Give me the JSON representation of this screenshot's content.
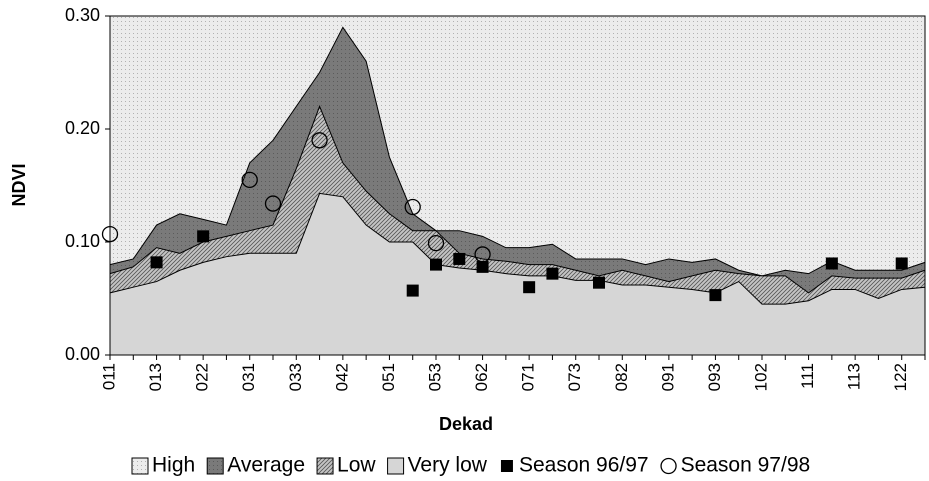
{
  "chart_data": {
    "type": "area",
    "x_label": "Dekad",
    "y_label": "NDVI",
    "categories": [
      "011",
      null,
      "013",
      null,
      "022",
      null,
      "031",
      null,
      "033",
      null,
      "042",
      null,
      "051",
      null,
      "053",
      null,
      "062",
      null,
      "071",
      null,
      "073",
      null,
      "082",
      null,
      "091",
      null,
      "093",
      null,
      "102",
      null,
      "111",
      null,
      "113",
      null,
      "122",
      null
    ],
    "ylim": [
      0,
      0.3
    ],
    "yticks": [
      {
        "value": 0,
        "label": "0.00"
      },
      {
        "value": 0.1,
        "label": "0.10"
      },
      {
        "value": 0.2,
        "label": "0.20"
      },
      {
        "value": 0.3,
        "label": "0.30"
      }
    ],
    "series": [
      {
        "name": "High",
        "type": "area",
        "color": "#ececec",
        "pattern": "dots",
        "values": [
          0.3,
          0.3,
          0.3,
          0.3,
          0.3,
          0.3,
          0.3,
          0.3,
          0.3,
          0.3,
          0.3,
          0.3,
          0.3,
          0.3,
          0.3,
          0.3,
          0.3,
          0.3,
          0.3,
          0.3,
          0.3,
          0.3,
          0.3,
          0.3,
          0.3,
          0.3,
          0.3,
          0.3,
          0.3,
          0.3,
          0.3,
          0.3,
          0.3,
          0.3,
          0.3,
          0.3
        ]
      },
      {
        "name": "Average",
        "type": "area",
        "color": "#7a7a7a",
        "pattern": "dots",
        "values": [
          0.08,
          0.085,
          0.115,
          0.125,
          0.12,
          0.115,
          0.17,
          0.19,
          0.22,
          0.25,
          0.29,
          0.26,
          0.175,
          0.125,
          0.11,
          0.11,
          0.105,
          0.095,
          0.095,
          0.098,
          0.085,
          0.085,
          0.085,
          0.08,
          0.085,
          0.082,
          0.085,
          0.075,
          0.07,
          0.075,
          0.072,
          0.083,
          0.075,
          0.075,
          0.075,
          0.082
        ]
      },
      {
        "name": "Low",
        "type": "area",
        "color": "#c4c4c4",
        "pattern": "hatch",
        "values": [
          0.072,
          0.078,
          0.095,
          0.09,
          0.1,
          0.105,
          0.11,
          0.115,
          0.165,
          0.22,
          0.17,
          0.145,
          0.125,
          0.11,
          0.11,
          0.09,
          0.085,
          0.083,
          0.08,
          0.08,
          0.075,
          0.07,
          0.075,
          0.07,
          0.065,
          0.07,
          0.075,
          0.072,
          0.07,
          0.07,
          0.055,
          0.07,
          0.068,
          0.068,
          0.068,
          0.075
        ]
      },
      {
        "name": "Very low",
        "type": "area",
        "color": "#d6d6d6",
        "pattern": null,
        "values": [
          0.055,
          0.06,
          0.065,
          0.075,
          0.082,
          0.087,
          0.09,
          0.09,
          0.09,
          0.143,
          0.14,
          0.115,
          0.1,
          0.1,
          0.08,
          0.077,
          0.075,
          0.072,
          0.07,
          0.07,
          0.066,
          0.066,
          0.062,
          0.062,
          0.06,
          0.058,
          0.055,
          0.065,
          0.045,
          0.045,
          0.048,
          0.058,
          0.058,
          0.05,
          0.058,
          0.06
        ]
      },
      {
        "name": "Season 96/97",
        "type": "scatter",
        "marker": "square",
        "color": "#000000",
        "values": [
          null,
          null,
          0.082,
          null,
          0.105,
          null,
          null,
          null,
          null,
          null,
          null,
          null,
          null,
          0.057,
          0.08,
          0.085,
          0.078,
          null,
          0.06,
          0.072,
          null,
          0.064,
          null,
          null,
          null,
          null,
          0.053,
          null,
          null,
          null,
          null,
          0.081,
          null,
          null,
          0.081,
          null
        ]
      },
      {
        "name": "Season 97/98",
        "type": "scatter",
        "marker": "circle",
        "color": "#000000",
        "values": [
          0.107,
          null,
          null,
          null,
          null,
          null,
          0.155,
          0.134,
          null,
          0.19,
          null,
          null,
          null,
          0.131,
          0.099,
          null,
          0.089,
          null,
          null,
          null,
          null,
          null,
          null,
          null,
          null,
          null,
          null,
          null,
          null,
          null,
          null,
          null,
          null,
          null,
          null,
          null
        ]
      }
    ]
  }
}
